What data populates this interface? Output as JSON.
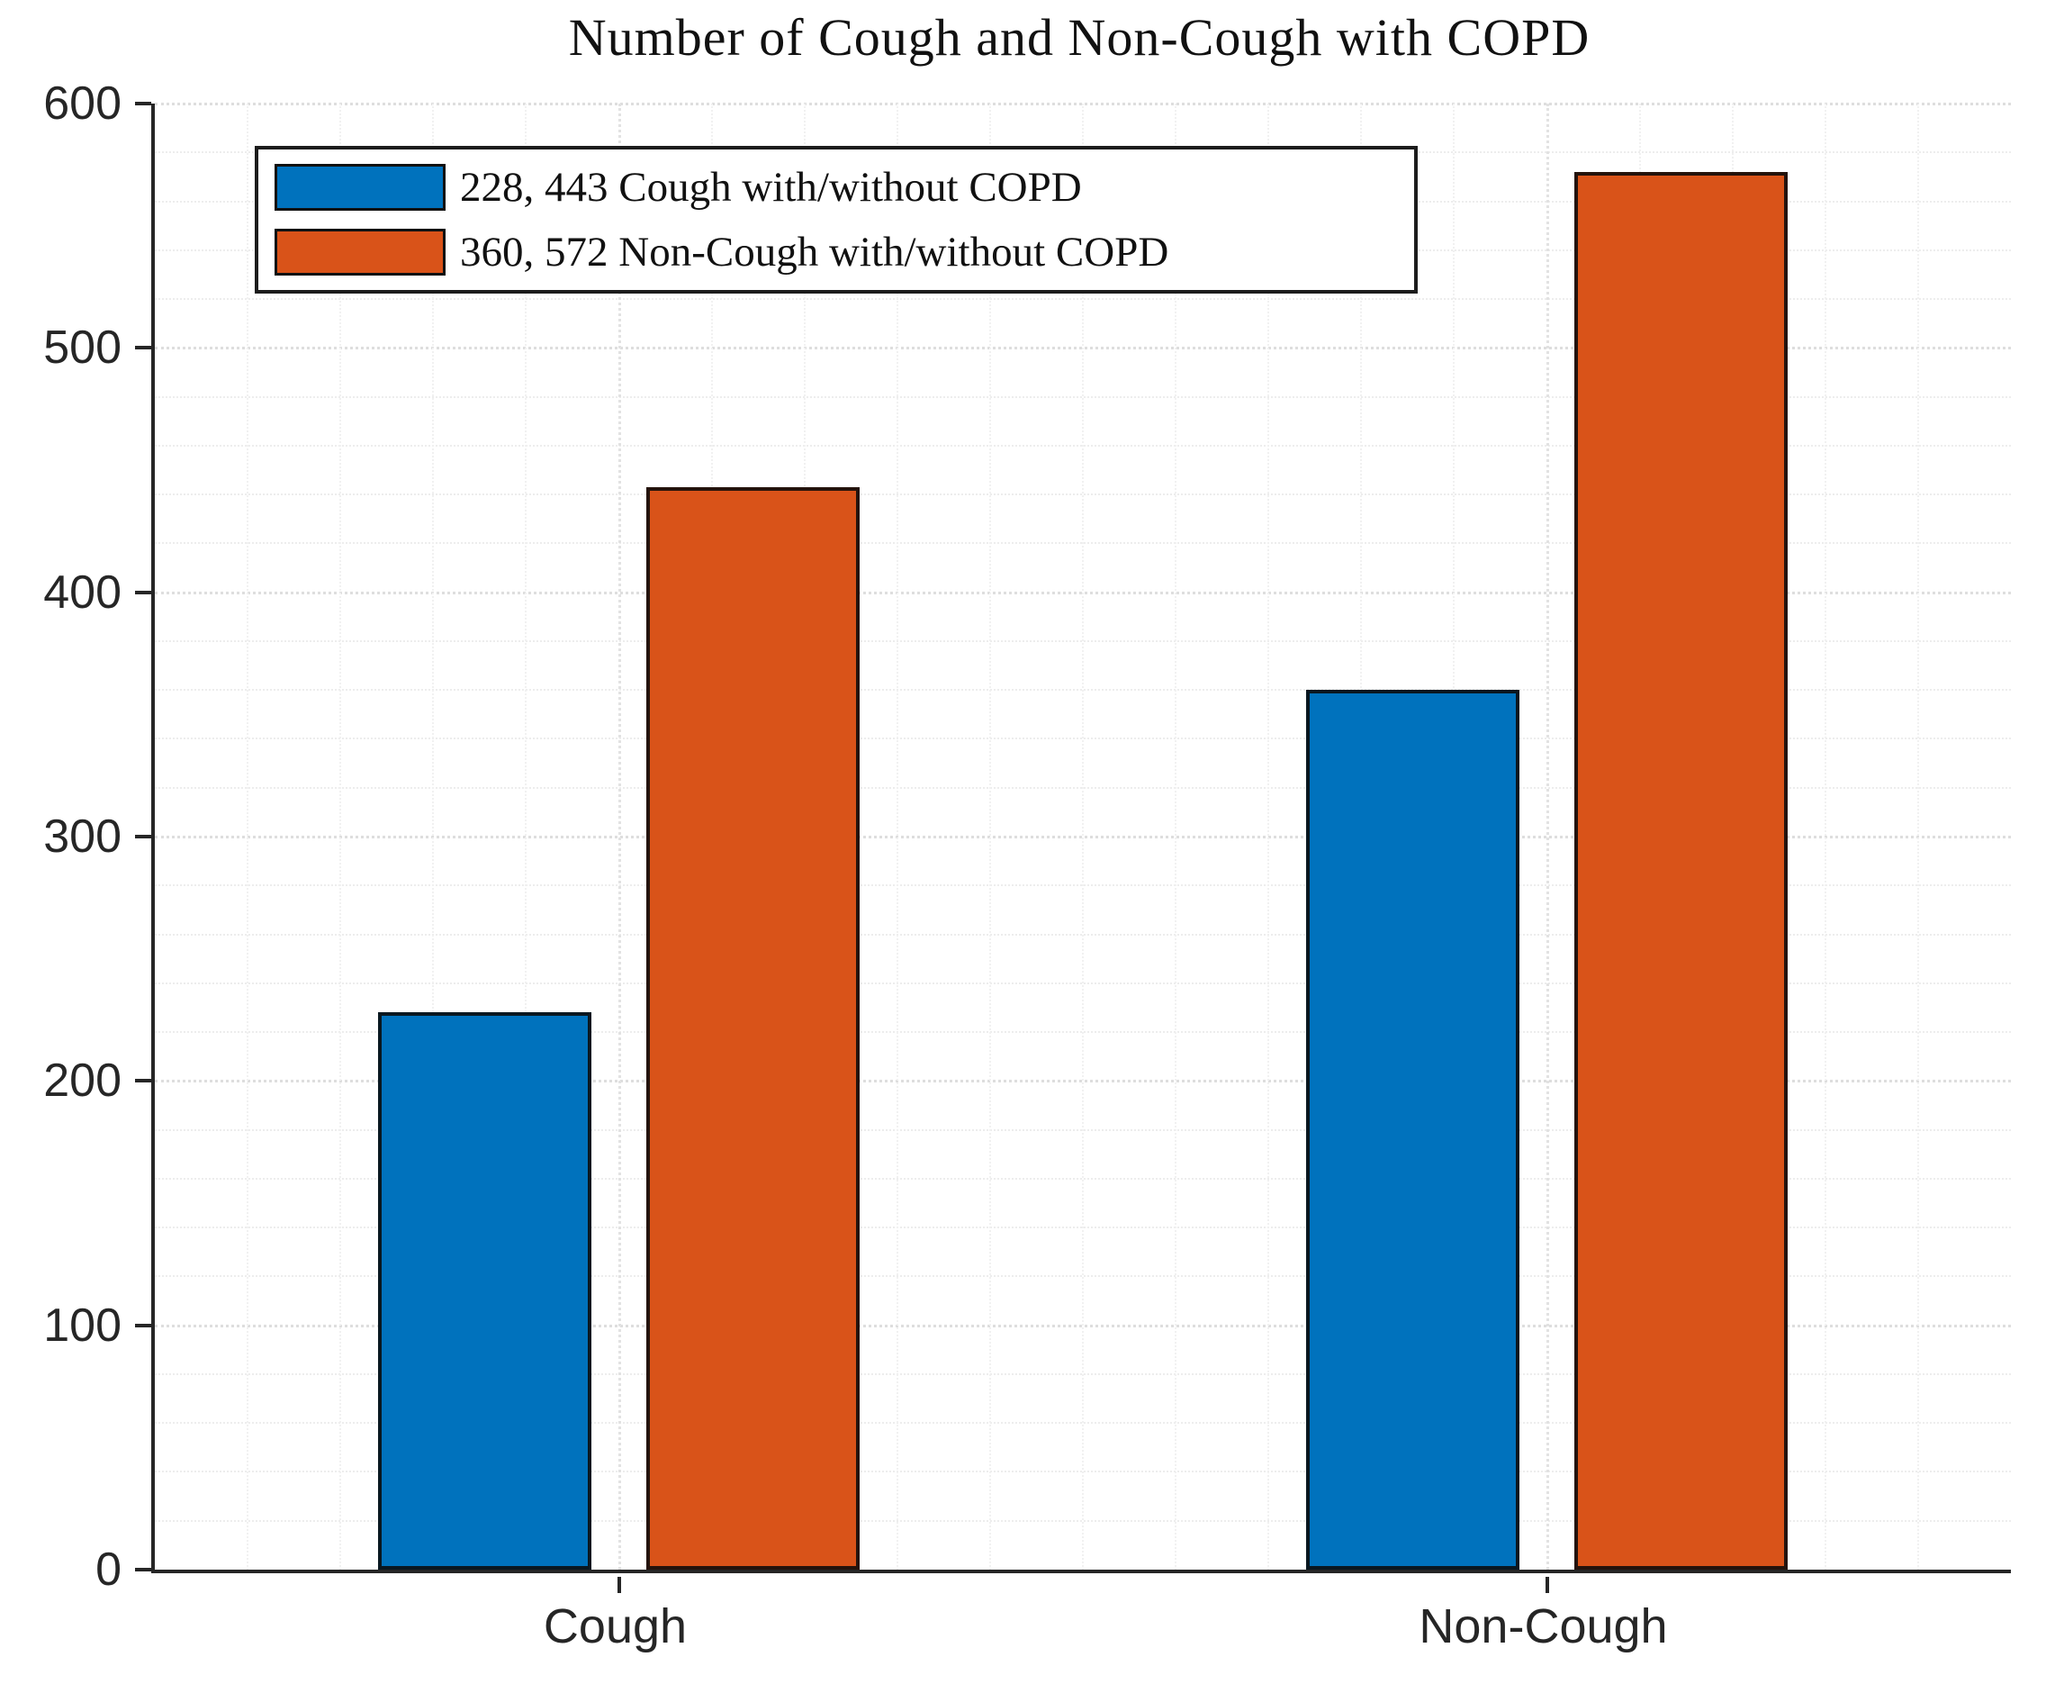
{
  "title": {
    "text": "Number of Cough and Non-Cough with COPD"
  },
  "legend": {
    "entries": [
      {
        "label": "228, 443 Cough with/without COPD",
        "color": "#0072BD"
      },
      {
        "label": "360, 572 Non-Cough with/without COPD",
        "color": "#D95319"
      }
    ]
  },
  "axes": {
    "y_tick_labels": [
      "0",
      "100",
      "200",
      "300",
      "400",
      "500",
      "600"
    ],
    "x_tick_labels": [
      "Cough",
      "Non-Cough"
    ]
  },
  "chart_data": {
    "type": "bar",
    "title": "Number of Cough and Non-Cough with COPD",
    "categories": [
      "Cough",
      "Non-Cough"
    ],
    "series": [
      {
        "name": "228, 443 Cough with/without COPD",
        "values": [
          228,
          360
        ],
        "color": "#0072BD"
      },
      {
        "name": "360, 572 Non-Cough with/without COPD",
        "values": [
          443,
          572
        ],
        "color": "#D95319"
      }
    ],
    "xlabel": "",
    "ylabel": "",
    "ylim": [
      0,
      600
    ],
    "y_tick_step": 100,
    "minor_grid_step": 20,
    "grid": true,
    "edge_color": "#000000",
    "legend_position": "top-left"
  }
}
